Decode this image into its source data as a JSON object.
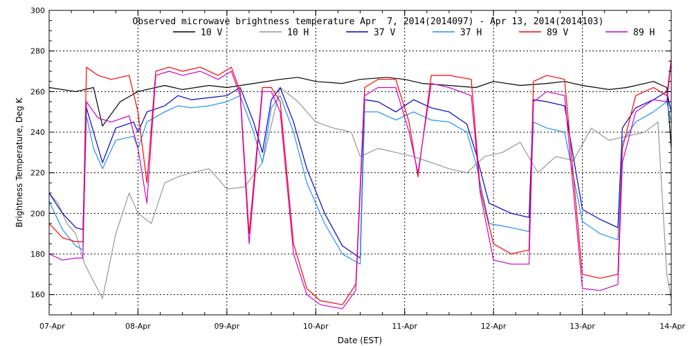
{
  "chart_data": {
    "type": "line",
    "title": "Observed microwave brightness temperature Apr  7, 2014(2014097) - Apr 13, 2014(2014103)",
    "xlabel": "Date (EST)",
    "ylabel": "Brightness Temperature, Deg K",
    "xlim": [
      0,
      7
    ],
    "ylim": [
      150,
      300
    ],
    "yticks": [
      160,
      180,
      200,
      220,
      240,
      260,
      280,
      300
    ],
    "xtick_labels": [
      "07-Apr",
      "08-Apr",
      "09-Apr",
      "10-Apr",
      "11-Apr",
      "12-Apr",
      "13-Apr",
      "14-Apr"
    ],
    "grid": true,
    "legend_position": "top",
    "series": [
      {
        "name": "10 V",
        "color": "#000000",
        "x": [
          0,
          0.3,
          0.5,
          0.6,
          0.8,
          1.0,
          1.3,
          1.5,
          1.8,
          2.0,
          2.3,
          2.6,
          2.8,
          3.0,
          3.3,
          3.5,
          3.8,
          4.0,
          4.2,
          4.5,
          4.8,
          5.0,
          5.3,
          5.6,
          5.8,
          6.0,
          6.3,
          6.5,
          6.8,
          6.95,
          7.0
        ],
        "y": [
          262,
          260,
          262,
          243,
          255,
          260,
          263,
          261,
          263,
          262,
          264,
          266,
          267,
          265,
          264,
          266,
          267,
          266,
          264,
          263,
          262,
          265,
          263,
          264,
          265,
          263,
          261,
          262,
          265,
          262,
          232
        ]
      },
      {
        "name": "10 H",
        "color": "#969696",
        "x": [
          0,
          0.1,
          0.2,
          0.3,
          0.4,
          0.6,
          0.75,
          0.9,
          1.0,
          1.15,
          1.3,
          1.45,
          1.6,
          1.8,
          2.0,
          2.2,
          2.4,
          2.6,
          2.8,
          3.0,
          3.2,
          3.4,
          3.5,
          3.7,
          3.9,
          4.1,
          4.3,
          4.5,
          4.7,
          4.9,
          5.1,
          5.3,
          5.5,
          5.7,
          5.9,
          6.1,
          6.3,
          6.5,
          6.7,
          6.85,
          6.95,
          7.0
        ],
        "y": [
          210,
          205,
          195,
          190,
          175,
          158,
          190,
          210,
          200,
          195,
          215,
          218,
          220,
          222,
          212,
          213,
          225,
          262,
          255,
          245,
          242,
          240,
          228,
          232,
          230,
          228,
          225,
          222,
          220,
          228,
          230,
          235,
          220,
          228,
          226,
          242,
          236,
          238,
          240,
          245,
          170,
          158
        ]
      },
      {
        "name": "37 V",
        "color": "#0000CD",
        "x": [
          0,
          0.15,
          0.3,
          0.38,
          0.42,
          0.5,
          0.6,
          0.75,
          0.95,
          1.0,
          1.1,
          1.3,
          1.45,
          1.6,
          1.8,
          2.0,
          2.15,
          2.3,
          2.4,
          2.5,
          2.6,
          2.75,
          2.9,
          3.1,
          3.3,
          3.5,
          3.55,
          3.7,
          3.9,
          4.1,
          4.3,
          4.5,
          4.7,
          4.8,
          4.95,
          5.2,
          5.4,
          5.45,
          5.6,
          5.8,
          6.0,
          6.2,
          6.4,
          6.45,
          6.6,
          6.8,
          6.95,
          7.0
        ],
        "y": [
          210,
          200,
          193,
          192,
          252,
          240,
          225,
          242,
          245,
          240,
          250,
          253,
          258,
          256,
          257,
          258,
          262,
          245,
          230,
          256,
          262,
          245,
          222,
          200,
          184,
          178,
          256,
          255,
          250,
          256,
          252,
          250,
          244,
          230,
          205,
          200,
          198,
          256,
          255,
          253,
          202,
          197,
          193,
          242,
          252,
          256,
          260,
          250
        ]
      },
      {
        "name": "37 H",
        "color": "#1E90FF",
        "x": [
          0,
          0.15,
          0.3,
          0.38,
          0.42,
          0.5,
          0.6,
          0.75,
          0.95,
          1.0,
          1.1,
          1.3,
          1.45,
          1.6,
          1.8,
          2.0,
          2.15,
          2.3,
          2.4,
          2.5,
          2.6,
          2.75,
          2.9,
          3.1,
          3.3,
          3.5,
          3.55,
          3.7,
          3.9,
          4.1,
          4.3,
          4.5,
          4.7,
          4.8,
          4.95,
          5.2,
          5.4,
          5.45,
          5.6,
          5.8,
          6.0,
          6.2,
          6.4,
          6.45,
          6.6,
          6.8,
          6.95,
          7.0
        ],
        "y": [
          206,
          192,
          184,
          182,
          248,
          232,
          222,
          236,
          238,
          232,
          245,
          250,
          253,
          252,
          253,
          255,
          258,
          240,
          225,
          252,
          258,
          240,
          215,
          195,
          180,
          175,
          250,
          250,
          246,
          250,
          246,
          245,
          240,
          225,
          195,
          193,
          191,
          245,
          242,
          240,
          196,
          190,
          187,
          235,
          245,
          250,
          255,
          245
        ]
      },
      {
        "name": "89 V",
        "color": "#FF0000",
        "x": [
          0,
          0.15,
          0.3,
          0.38,
          0.42,
          0.55,
          0.7,
          0.9,
          1.0,
          1.1,
          1.2,
          1.35,
          1.5,
          1.7,
          1.9,
          2.05,
          2.15,
          2.25,
          2.4,
          2.5,
          2.6,
          2.75,
          2.9,
          3.05,
          3.3,
          3.45,
          3.55,
          3.7,
          3.9,
          4.05,
          4.15,
          4.3,
          4.5,
          4.75,
          4.85,
          5.0,
          5.2,
          5.4,
          5.45,
          5.6,
          5.8,
          6.0,
          6.2,
          6.4,
          6.45,
          6.6,
          6.8,
          6.95,
          7.0
        ],
        "y": [
          195,
          188,
          186,
          186,
          272,
          268,
          266,
          268,
          250,
          215,
          270,
          272,
          270,
          272,
          268,
          272,
          260,
          190,
          262,
          262,
          255,
          185,
          163,
          157,
          155,
          165,
          262,
          266,
          266,
          245,
          218,
          268,
          268,
          266,
          212,
          185,
          180,
          182,
          265,
          268,
          266,
          170,
          168,
          170,
          232,
          258,
          262,
          258,
          276
        ]
      },
      {
        "name": "89 H",
        "color": "#CC00CC",
        "x": [
          0,
          0.15,
          0.3,
          0.38,
          0.42,
          0.55,
          0.7,
          0.9,
          1.0,
          1.1,
          1.2,
          1.35,
          1.5,
          1.7,
          1.9,
          2.05,
          2.15,
          2.25,
          2.4,
          2.5,
          2.6,
          2.75,
          2.9,
          3.05,
          3.3,
          3.45,
          3.55,
          3.7,
          3.9,
          4.05,
          4.15,
          4.3,
          4.5,
          4.75,
          4.85,
          5.0,
          5.2,
          5.4,
          5.45,
          5.6,
          5.8,
          6.0,
          6.2,
          6.4,
          6.45,
          6.6,
          6.8,
          6.95,
          7.0
        ],
        "y": [
          180,
          177,
          178,
          178,
          255,
          247,
          245,
          248,
          232,
          205,
          268,
          270,
          268,
          270,
          266,
          270,
          258,
          185,
          260,
          260,
          250,
          180,
          160,
          155,
          153,
          162,
          258,
          262,
          262,
          240,
          220,
          264,
          262,
          258,
          210,
          177,
          175,
          175,
          255,
          260,
          258,
          163,
          162,
          165,
          225,
          250,
          256,
          255,
          275
        ]
      }
    ]
  }
}
